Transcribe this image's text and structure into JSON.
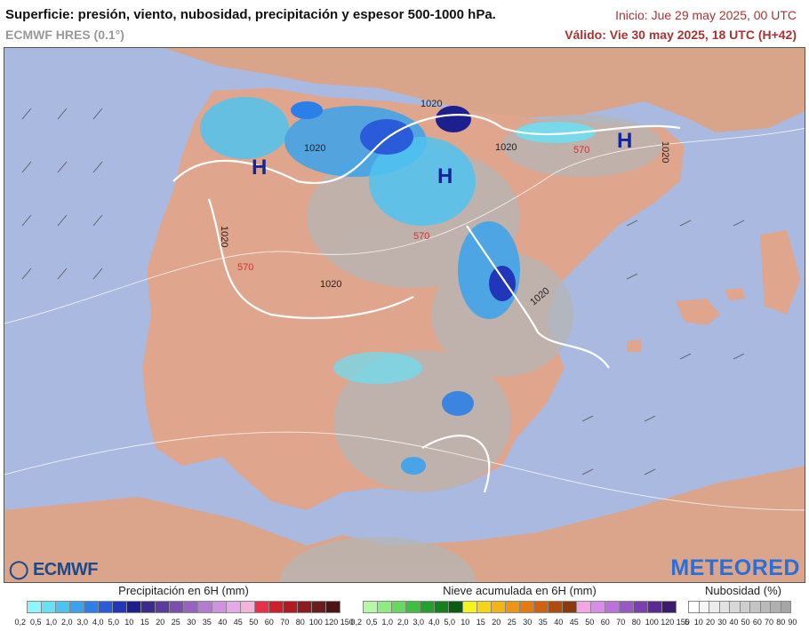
{
  "header": {
    "title": "Superficie: presión, viento, nubosidad, precipitación y espesor 500-1000 hPa.",
    "model": "ECMWF HRES (0.1°)",
    "init": "Inicio: Jue 29 may 2025, 00 UTC",
    "valid": "Válido: Vie 30 may 2025, 18 UTC (H+42)"
  },
  "map": {
    "high_pressure_label": "H",
    "isobar_labels": [
      "1020",
      "1020",
      "1020",
      "1020",
      "1020",
      "1020",
      "1020"
    ],
    "thickness_labels": [
      "570",
      "570",
      "570"
    ]
  },
  "logos": {
    "ecmwf": "ECMWF",
    "meteored": "METEORED"
  },
  "legends": {
    "precip": {
      "title": "Precipitación en 6H (mm)",
      "ticks": [
        "0,2",
        "0,5",
        "1,0",
        "2,0",
        "3,0",
        "4,0",
        "5,0",
        "10",
        "15",
        "20",
        "25",
        "30",
        "35",
        "40",
        "45",
        "50",
        "60",
        "70",
        "80",
        "100",
        "120",
        "150"
      ],
      "colors": [
        "#8ef6fa",
        "#6ae0f5",
        "#4fc3f0",
        "#3aa3ec",
        "#2c7fe6",
        "#2a5bd9",
        "#2136b8",
        "#1d1f8f",
        "#3d2a8f",
        "#5b3b9e",
        "#7a4fb0",
        "#9663c2",
        "#b47bd2",
        "#cf93df",
        "#e6a9e8",
        "#f4b3d8",
        "#e8304a",
        "#cf1f2e",
        "#b21a22",
        "#8c1c20",
        "#6b1c1c",
        "#4e1414"
      ]
    },
    "snow": {
      "title": "Nieve acumulada en 6H (mm)",
      "ticks": [
        "0,2",
        "0,5",
        "1,0",
        "2,0",
        "3,0",
        "4,0",
        "5,0",
        "10",
        "15",
        "20",
        "25",
        "30",
        "35",
        "40",
        "45",
        "50",
        "60",
        "70",
        "80",
        "100",
        "120",
        "150"
      ],
      "colors": [
        "#b6f7a8",
        "#8eec82",
        "#66d95e",
        "#3fbf3f",
        "#25a02e",
        "#15801e",
        "#0a5c12",
        "#f5f51a",
        "#f5d516",
        "#f2b514",
        "#ee9612",
        "#e47a10",
        "#cf620e",
        "#b04d0c",
        "#8d3a0a",
        "#f2a6e8",
        "#d98de8",
        "#bb72dc",
        "#9a57c8",
        "#7a3fb0",
        "#5a2b94",
        "#3c1a70"
      ]
    },
    "cloud": {
      "title": "Nubosidad (%)",
      "ticks": [
        "5",
        "10",
        "20",
        "30",
        "40",
        "50",
        "60",
        "70",
        "80",
        "90"
      ],
      "colors": [
        "#ffffff",
        "#f6f6f6",
        "#ececec",
        "#e2e2e2",
        "#d8d8d8",
        "#cecece",
        "#c4c4c4",
        "#bababa",
        "#b0b0b0",
        "#a6a6a6"
      ]
    }
  }
}
